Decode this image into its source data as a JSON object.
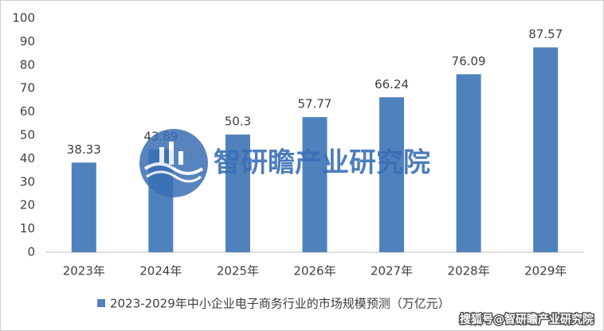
{
  "chart_data": {
    "type": "bar",
    "categories": [
      "2023年",
      "2024年",
      "2025年",
      "2026年",
      "2027年",
      "2028年",
      "2029年"
    ],
    "series": [
      {
        "name": "2023-2029年中小企业电子商务行业的市场规模预测（万亿元）",
        "color": "#4f81bd",
        "values": [
          38.33,
          43.89,
          50.3,
          57.77,
          66.24,
          76.09,
          87.57
        ]
      }
    ],
    "ylim": [
      0,
      100
    ],
    "yticks": [
      0,
      10,
      20,
      30,
      40,
      50,
      60,
      70,
      80,
      90,
      100
    ],
    "grid": false,
    "legend": "bottom"
  },
  "watermark": "智研瞻产业研究院",
  "source": "搜狐号@智研瞻产业研究院"
}
